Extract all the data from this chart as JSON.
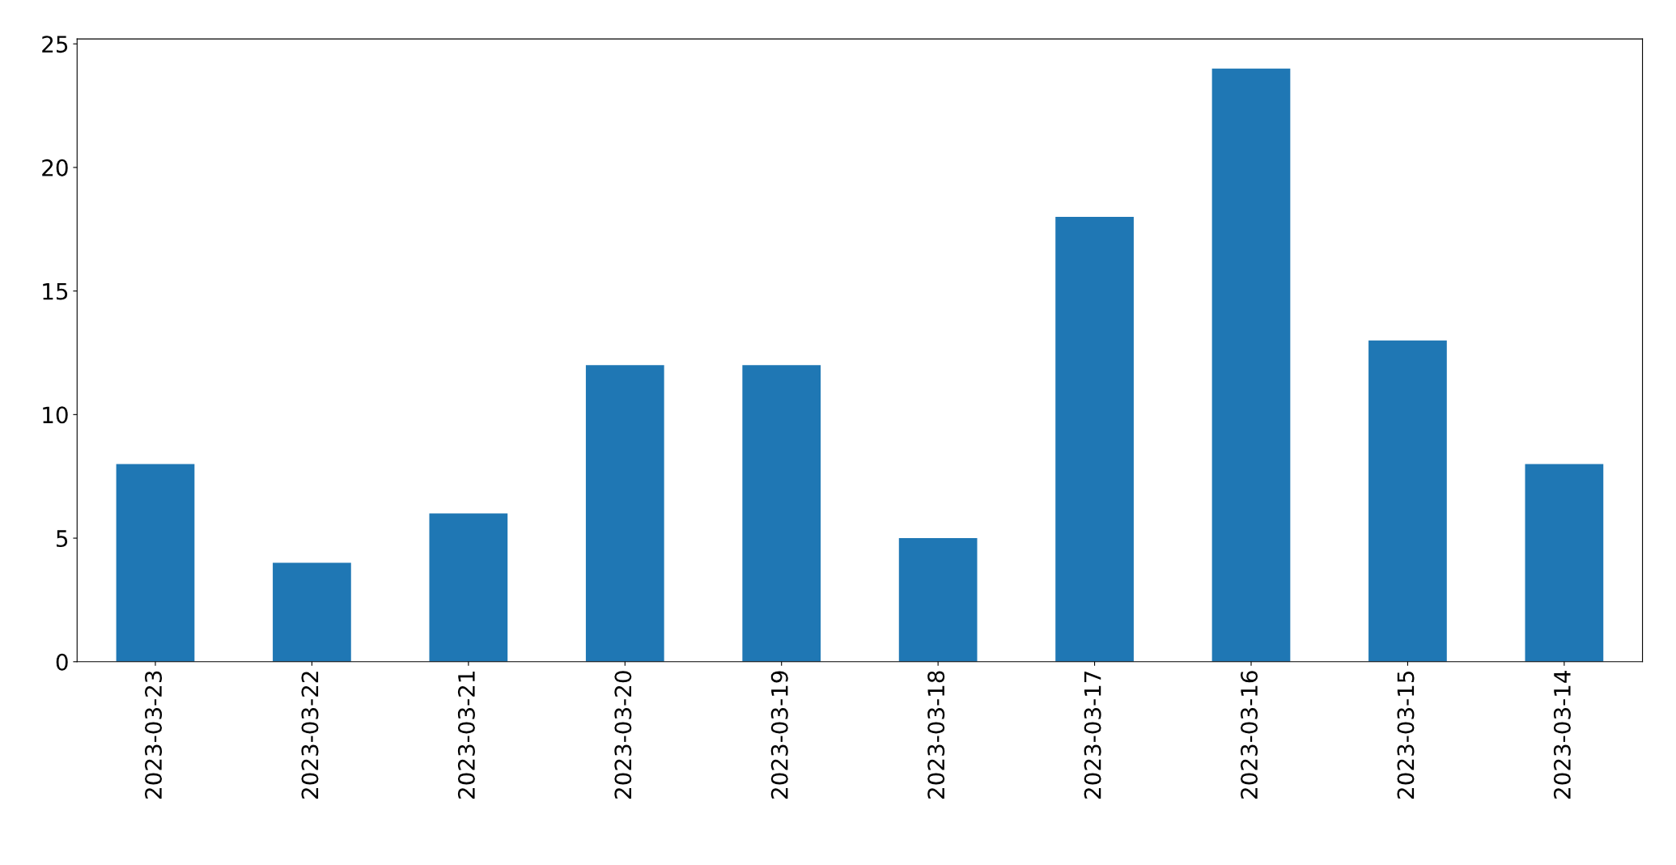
{
  "chart_data": {
    "type": "bar",
    "categories": [
      "2023-03-23",
      "2023-03-22",
      "2023-03-21",
      "2023-03-20",
      "2023-03-19",
      "2023-03-18",
      "2023-03-17",
      "2023-03-16",
      "2023-03-15",
      "2023-03-14"
    ],
    "values": [
      8,
      4,
      6,
      12,
      12,
      5,
      18,
      24,
      13,
      8
    ],
    "color": "#1f77b4",
    "ylim": [
      0,
      25.2
    ],
    "yticks": [
      0,
      5,
      10,
      15,
      20,
      25
    ],
    "grid": false,
    "legend": false
  }
}
